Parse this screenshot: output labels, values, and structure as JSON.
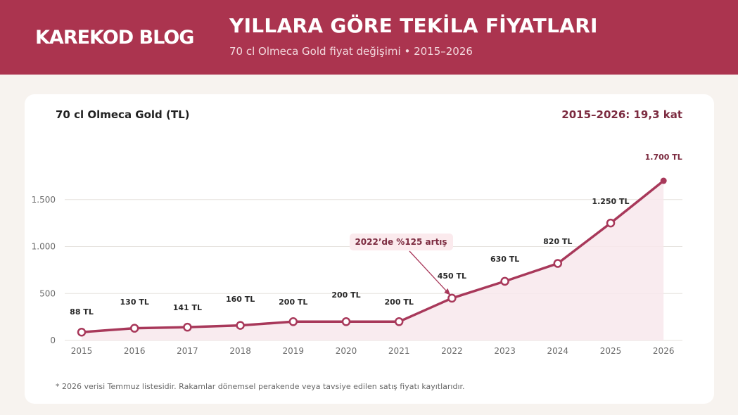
{
  "header": {
    "brand": "KAREKOD BLOG",
    "title": "YILLARA GÖRE TEKİLA FİYATLARI",
    "subtitle": "70 cl Olmeca Gold fiyat değişimi • 2015–2026"
  },
  "card": {
    "title": "70 cl Olmeca Gold (TL)",
    "summary": "2015–2026: 19,3 kat",
    "footnote": "* 2026 verisi Temmuz listesidir. Rakamlar dönemsel perakende veya tavsiye edilen satış fiyatı kayıtlarıdır."
  },
  "colors": {
    "accent": "#ab344f",
    "line": "#a8385a",
    "area": "#f8e8ec",
    "annotation_bg": "#fbeaed",
    "summary_text": "#7c2b40"
  },
  "chart_data": {
    "type": "line",
    "categories": [
      "2015",
      "2016",
      "2017",
      "2018",
      "2019",
      "2020",
      "2021",
      "2022",
      "2023",
      "2024",
      "2025",
      "2026"
    ],
    "values": [
      88,
      130,
      141,
      160,
      200,
      200,
      200,
      450,
      630,
      820,
      1250,
      1700
    ],
    "data_labels": [
      "88 TL",
      "130 TL",
      "141 TL",
      "160 TL",
      "200 TL",
      "200 TL",
      "200 TL",
      "450 TL",
      "630 TL",
      "820 TL",
      "1.250 TL",
      "1.700 TL"
    ],
    "y_ticks": [
      0,
      500,
      1000,
      1500
    ],
    "y_tick_labels": [
      "0",
      "500",
      "1.000",
      "1.500"
    ],
    "ylim": [
      0,
      1700
    ],
    "grid": true,
    "area_fill": true,
    "annotation": {
      "text": "2022’de %125 artış",
      "target_index": 7
    }
  }
}
